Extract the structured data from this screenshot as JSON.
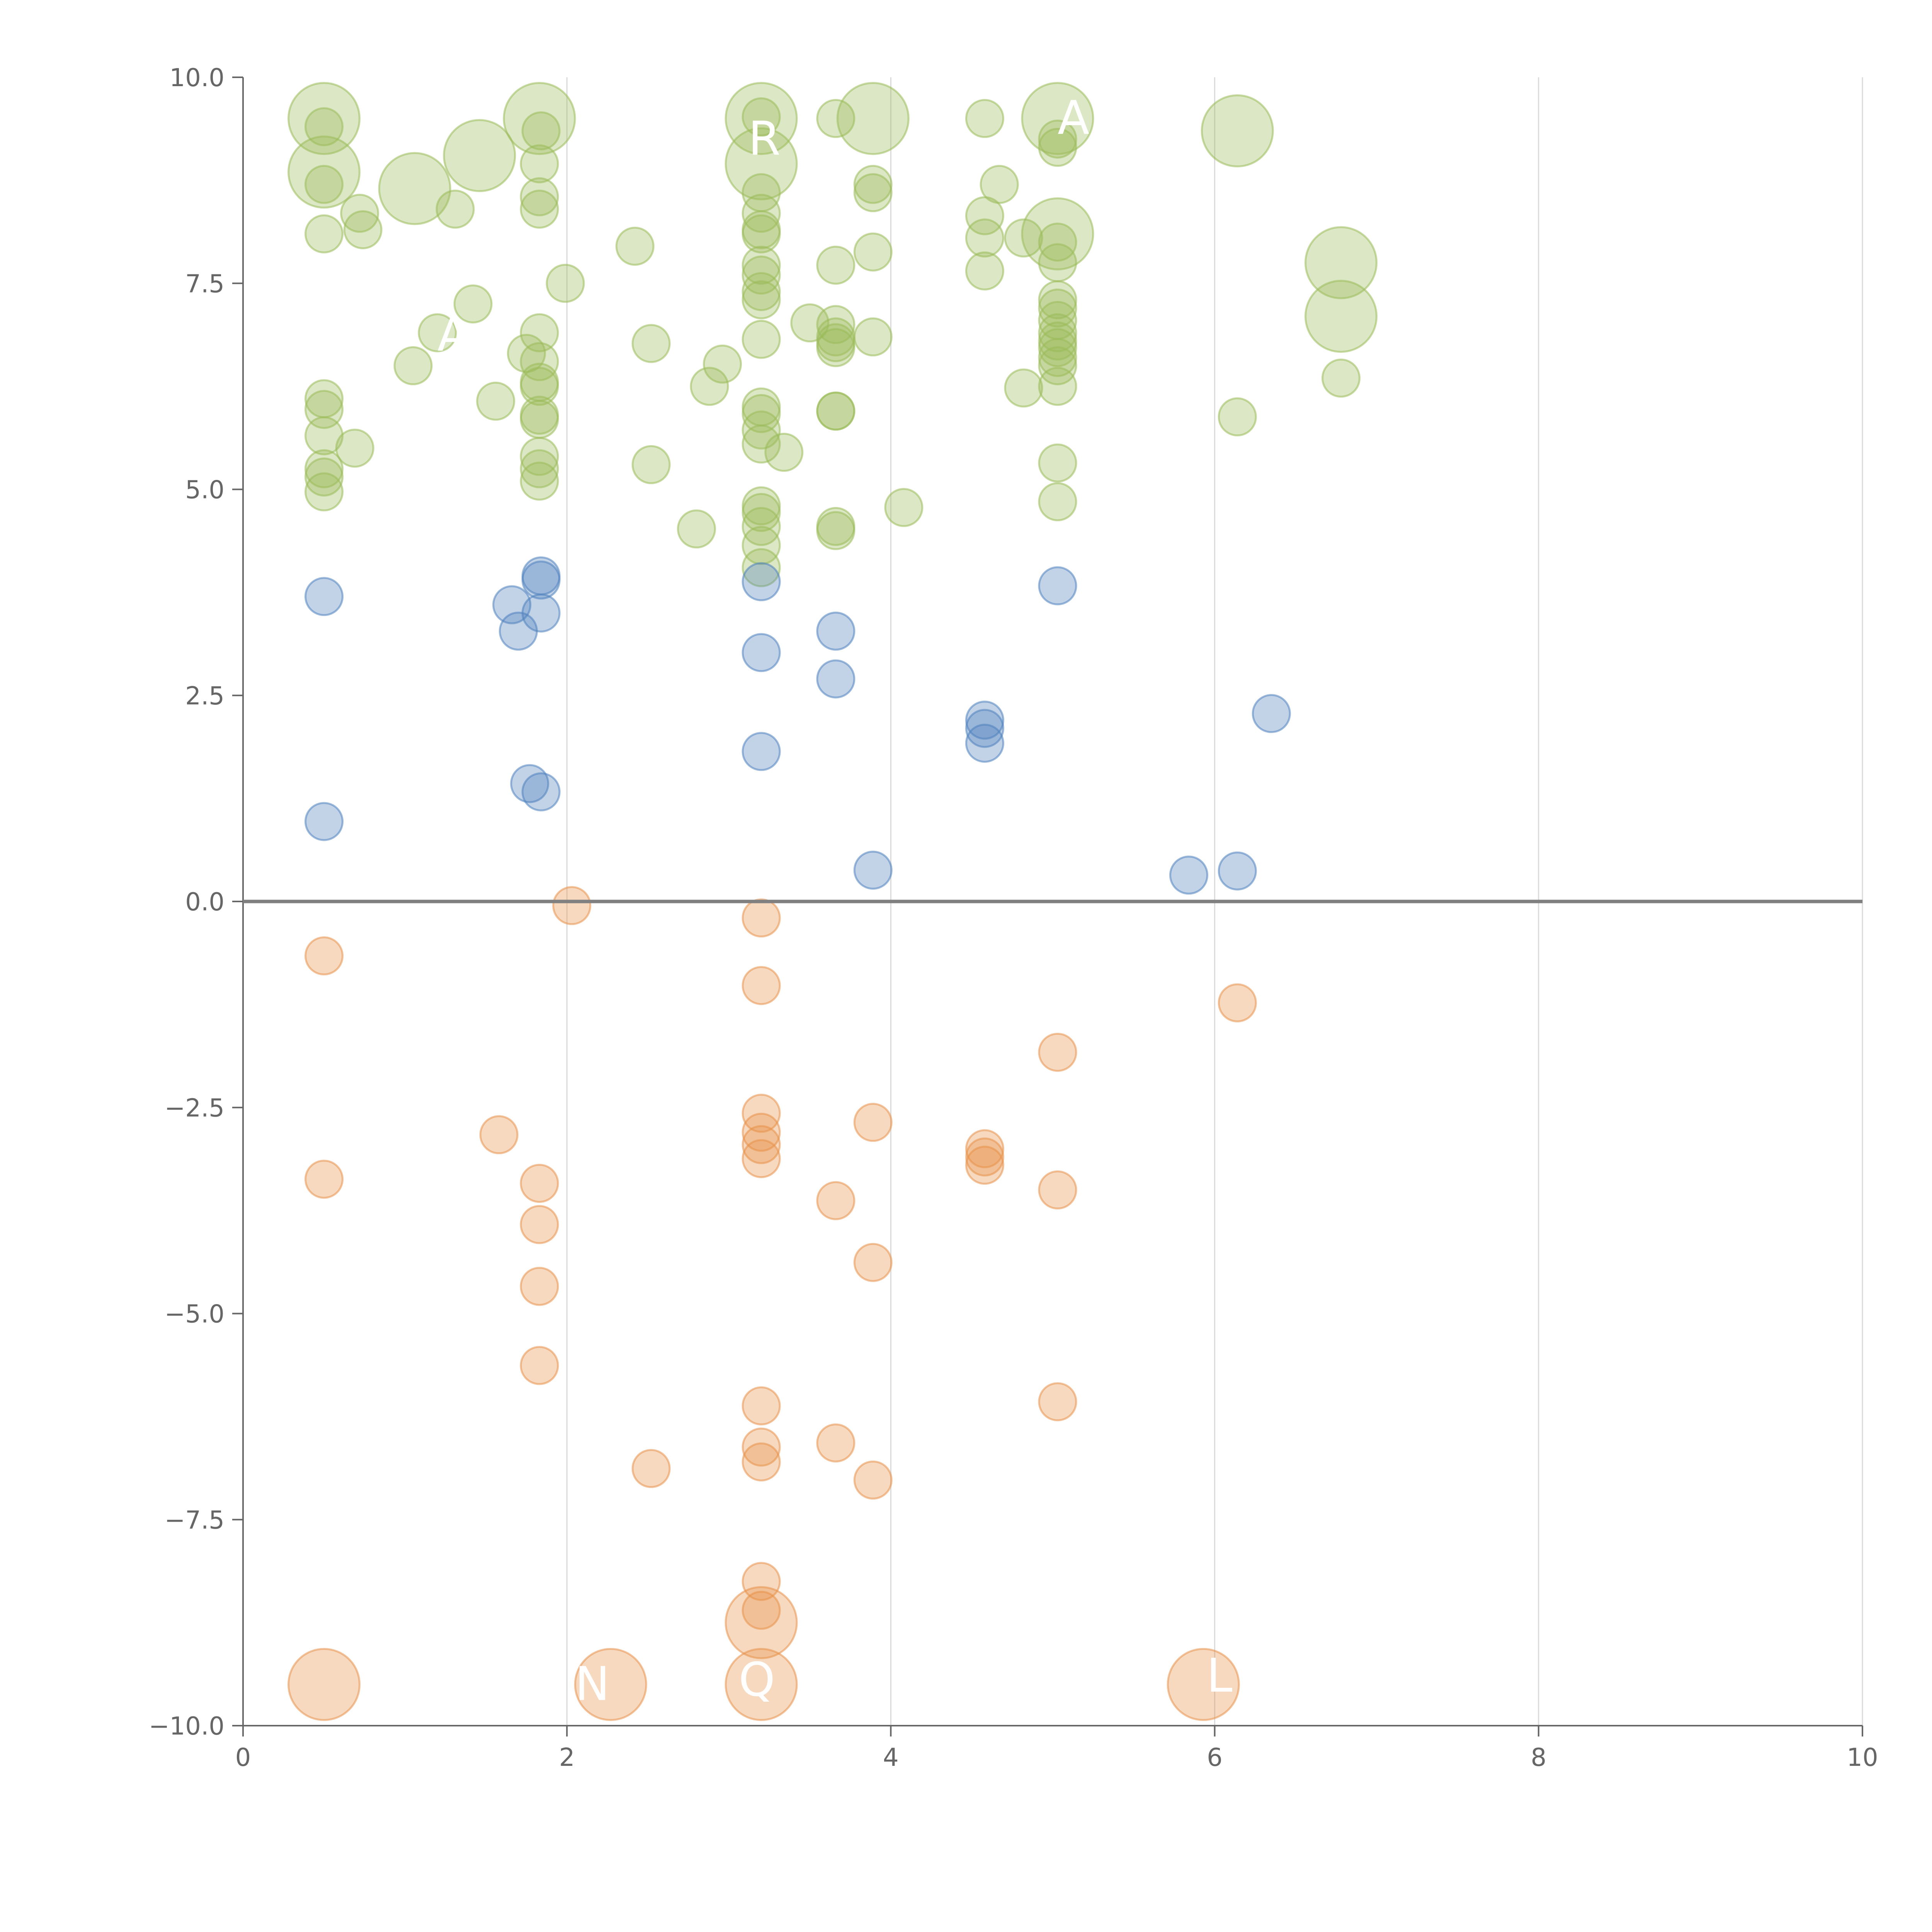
{
  "chart_data": {
    "type": "scatter",
    "subtype": "bubble",
    "title": "",
    "xlabel": "",
    "ylabel": "",
    "xlim": [
      0,
      10
    ],
    "ylim": [
      -10,
      10
    ],
    "x_ticks": [
      0,
      2,
      4,
      6,
      8,
      10
    ],
    "x_tick_labels": [
      "0",
      "2",
      "4",
      "6",
      "8",
      "10"
    ],
    "y_ticks": [
      -10,
      -7.5,
      -5,
      -2.5,
      0,
      2.5,
      5,
      7.5,
      10
    ],
    "y_tick_labels": [
      "−10.0",
      "−7.5",
      "−5.0",
      "−2.5",
      "0.0",
      "2.5",
      "5.0",
      "7.5",
      "10.0"
    ],
    "grid": "vertical lines at x ticks",
    "zero_line": 0,
    "colors": {
      "green": "#9bbb59",
      "blue": "#4f81bd",
      "orange": "#e8924a",
      "axis": "#666666",
      "zero_line": "#808080",
      "grid": "#d9d9d9",
      "label": "#ffffff"
    },
    "series": [
      {
        "color": "green",
        "points": [
          {
            "x": 0.5,
            "y": 9.5,
            "size": "large"
          },
          {
            "x": 0.5,
            "y": 8.85,
            "size": "large"
          },
          {
            "x": 0.5,
            "y": 9.4
          },
          {
            "x": 0.5,
            "y": 8.7
          },
          {
            "x": 0.5,
            "y": 8.1
          },
          {
            "x": 0.72,
            "y": 8.35
          },
          {
            "x": 0.74,
            "y": 8.15
          },
          {
            "x": 1.06,
            "y": 8.65,
            "size": "large"
          },
          {
            "x": 1.31,
            "y": 8.4
          },
          {
            "x": 1.46,
            "y": 9.05,
            "size": "large"
          },
          {
            "x": 1.83,
            "y": 9.5,
            "size": "large"
          },
          {
            "x": 1.84,
            "y": 9.35
          },
          {
            "x": 1.83,
            "y": 8.95
          },
          {
            "x": 1.83,
            "y": 8.55
          },
          {
            "x": 1.83,
            "y": 8.4
          },
          {
            "x": 2.42,
            "y": 7.95
          },
          {
            "x": 1.99,
            "y": 7.5
          },
          {
            "x": 1.42,
            "y": 7.25
          },
          {
            "x": 1.2,
            "y": 6.9
          },
          {
            "x": 1.05,
            "y": 6.5
          },
          {
            "x": 1.83,
            "y": 6.9
          },
          {
            "x": 1.75,
            "y": 6.65
          },
          {
            "x": 1.83,
            "y": 6.55
          },
          {
            "x": 1.83,
            "y": 6.3
          },
          {
            "x": 1.83,
            "y": 6.25
          },
          {
            "x": 1.83,
            "y": 5.9
          },
          {
            "x": 1.83,
            "y": 5.85
          },
          {
            "x": 1.83,
            "y": 5.4
          },
          {
            "x": 1.83,
            "y": 5.25
          },
          {
            "x": 1.83,
            "y": 5.1
          },
          {
            "x": 1.56,
            "y": 6.07
          },
          {
            "x": 0.5,
            "y": 6.1
          },
          {
            "x": 0.5,
            "y": 5.97
          },
          {
            "x": 0.5,
            "y": 5.65
          },
          {
            "x": 0.5,
            "y": 5.25
          },
          {
            "x": 0.5,
            "y": 5.15
          },
          {
            "x": 0.5,
            "y": 4.97
          },
          {
            "x": 0.69,
            "y": 5.5
          },
          {
            "x": 2.52,
            "y": 6.77
          },
          {
            "x": 2.52,
            "y": 5.3
          },
          {
            "x": 2.8,
            "y": 4.52
          },
          {
            "x": 2.96,
            "y": 6.52
          },
          {
            "x": 2.88,
            "y": 6.25
          },
          {
            "x": 3.2,
            "y": 9.5,
            "size": "large"
          },
          {
            "x": 3.2,
            "y": 9.52
          },
          {
            "x": 3.2,
            "y": 8.95,
            "size": "large"
          },
          {
            "x": 3.2,
            "y": 8.6
          },
          {
            "x": 3.2,
            "y": 8.35
          },
          {
            "x": 3.2,
            "y": 8.15
          },
          {
            "x": 3.2,
            "y": 8.1
          },
          {
            "x": 3.2,
            "y": 7.72
          },
          {
            "x": 3.2,
            "y": 7.6
          },
          {
            "x": 3.2,
            "y": 7.4
          },
          {
            "x": 3.2,
            "y": 7.3
          },
          {
            "x": 3.2,
            "y": 6.82
          },
          {
            "x": 3.2,
            "y": 6.0
          },
          {
            "x": 3.2,
            "y": 5.92
          },
          {
            "x": 3.2,
            "y": 5.72
          },
          {
            "x": 3.2,
            "y": 5.55
          },
          {
            "x": 3.2,
            "y": 4.8
          },
          {
            "x": 3.2,
            "y": 4.72
          },
          {
            "x": 3.2,
            "y": 4.55
          },
          {
            "x": 3.2,
            "y": 4.32
          },
          {
            "x": 3.2,
            "y": 4.05
          },
          {
            "x": 3.34,
            "y": 5.45
          },
          {
            "x": 3.5,
            "y": 7.02
          },
          {
            "x": 3.66,
            "y": 9.5
          },
          {
            "x": 3.66,
            "y": 7.72
          },
          {
            "x": 3.66,
            "y": 7.0
          },
          {
            "x": 3.66,
            "y": 6.85
          },
          {
            "x": 3.66,
            "y": 6.78
          },
          {
            "x": 3.66,
            "y": 6.72
          },
          {
            "x": 3.66,
            "y": 5.95
          },
          {
            "x": 3.66,
            "y": 5.95
          },
          {
            "x": 3.66,
            "y": 4.55
          },
          {
            "x": 3.66,
            "y": 4.5
          },
          {
            "x": 3.89,
            "y": 9.5,
            "size": "large"
          },
          {
            "x": 3.89,
            "y": 8.7
          },
          {
            "x": 3.89,
            "y": 8.6
          },
          {
            "x": 3.89,
            "y": 7.88
          },
          {
            "x": 3.89,
            "y": 6.85
          },
          {
            "x": 4.08,
            "y": 4.78
          },
          {
            "x": 4.58,
            "y": 9.5
          },
          {
            "x": 4.58,
            "y": 8.32
          },
          {
            "x": 4.58,
            "y": 8.05
          },
          {
            "x": 4.58,
            "y": 7.65
          },
          {
            "x": 4.67,
            "y": 8.7
          },
          {
            "x": 4.82,
            "y": 8.05
          },
          {
            "x": 4.82,
            "y": 6.23
          },
          {
            "x": 5.03,
            "y": 9.5,
            "size": "large"
          },
          {
            "x": 5.03,
            "y": 9.25
          },
          {
            "x": 5.03,
            "y": 9.15
          },
          {
            "x": 5.03,
            "y": 8.1,
            "size": "large"
          },
          {
            "x": 5.03,
            "y": 8.0
          },
          {
            "x": 5.03,
            "y": 7.75
          },
          {
            "x": 5.03,
            "y": 7.3
          },
          {
            "x": 5.03,
            "y": 7.2
          },
          {
            "x": 5.03,
            "y": 7.05
          },
          {
            "x": 5.03,
            "y": 6.9
          },
          {
            "x": 5.03,
            "y": 6.8
          },
          {
            "x": 5.03,
            "y": 6.72
          },
          {
            "x": 5.03,
            "y": 6.6
          },
          {
            "x": 5.03,
            "y": 6.5
          },
          {
            "x": 5.03,
            "y": 6.25
          },
          {
            "x": 5.03,
            "y": 5.32
          },
          {
            "x": 5.03,
            "y": 4.85
          },
          {
            "x": 6.14,
            "y": 9.35,
            "size": "large"
          },
          {
            "x": 6.14,
            "y": 5.88
          },
          {
            "x": 6.78,
            "y": 7.75,
            "size": "large"
          },
          {
            "x": 6.78,
            "y": 7.1,
            "size": "large"
          },
          {
            "x": 6.78,
            "y": 6.35
          }
        ]
      },
      {
        "color": "blue",
        "points": [
          {
            "x": 0.5,
            "y": 3.7
          },
          {
            "x": 0.5,
            "y": 0.97
          },
          {
            "x": 1.66,
            "y": 3.6
          },
          {
            "x": 1.7,
            "y": 3.28
          },
          {
            "x": 1.84,
            "y": 3.95
          },
          {
            "x": 1.84,
            "y": 3.9
          },
          {
            "x": 1.84,
            "y": 3.5
          },
          {
            "x": 1.77,
            "y": 1.43
          },
          {
            "x": 1.84,
            "y": 1.33
          },
          {
            "x": 3.2,
            "y": 3.88
          },
          {
            "x": 3.2,
            "y": 3.02
          },
          {
            "x": 3.2,
            "y": 1.82
          },
          {
            "x": 3.66,
            "y": 3.28
          },
          {
            "x": 3.66,
            "y": 2.7
          },
          {
            "x": 3.89,
            "y": 0.38
          },
          {
            "x": 4.58,
            "y": 2.2
          },
          {
            "x": 4.58,
            "y": 2.1
          },
          {
            "x": 4.58,
            "y": 1.92
          },
          {
            "x": 5.03,
            "y": 3.83
          },
          {
            "x": 5.84,
            "y": 0.32
          },
          {
            "x": 6.14,
            "y": 0.37
          },
          {
            "x": 6.35,
            "y": 2.28
          }
        ]
      },
      {
        "color": "orange",
        "points": [
          {
            "x": 0.5,
            "y": -0.66
          },
          {
            "x": 0.5,
            "y": -3.37
          },
          {
            "x": 0.5,
            "y": -9.5,
            "size": "large"
          },
          {
            "x": 1.58,
            "y": -2.83
          },
          {
            "x": 1.83,
            "y": -3.42
          },
          {
            "x": 1.83,
            "y": -3.92
          },
          {
            "x": 1.83,
            "y": -4.67
          },
          {
            "x": 1.83,
            "y": -5.63
          },
          {
            "x": 2.03,
            "y": -0.05
          },
          {
            "x": 2.27,
            "y": -9.5,
            "size": "large"
          },
          {
            "x": 2.52,
            "y": -6.88
          },
          {
            "x": 3.2,
            "y": -0.2
          },
          {
            "x": 3.2,
            "y": -1.02
          },
          {
            "x": 3.2,
            "y": -2.57
          },
          {
            "x": 3.2,
            "y": -2.8
          },
          {
            "x": 3.2,
            "y": -2.95
          },
          {
            "x": 3.2,
            "y": -3.12
          },
          {
            "x": 3.2,
            "y": -6.12
          },
          {
            "x": 3.2,
            "y": -6.62
          },
          {
            "x": 3.2,
            "y": -6.8
          },
          {
            "x": 3.2,
            "y": -8.25
          },
          {
            "x": 3.2,
            "y": -8.6
          },
          {
            "x": 3.2,
            "y": -8.75,
            "size": "large"
          },
          {
            "x": 3.2,
            "y": -9.5,
            "size": "large"
          },
          {
            "x": 3.66,
            "y": -3.63
          },
          {
            "x": 3.66,
            "y": -6.57
          },
          {
            "x": 3.89,
            "y": -2.68
          },
          {
            "x": 3.89,
            "y": -4.38
          },
          {
            "x": 3.89,
            "y": -7.02
          },
          {
            "x": 4.58,
            "y": -3.0
          },
          {
            "x": 4.58,
            "y": -3.1
          },
          {
            "x": 4.58,
            "y": -3.2
          },
          {
            "x": 5.03,
            "y": -1.83
          },
          {
            "x": 5.03,
            "y": -3.5
          },
          {
            "x": 5.03,
            "y": -6.07
          },
          {
            "x": 5.93,
            "y": -9.5,
            "size": "large"
          },
          {
            "x": 6.14,
            "y": -1.23
          }
        ]
      }
    ],
    "annotations": [
      {
        "text": "A",
        "x": 5.03,
        "y": 9.5
      },
      {
        "text": "R",
        "x": 3.12,
        "y": 9.25
      },
      {
        "text": "A",
        "x": 1.2,
        "y": 6.87
      },
      {
        "text": "N",
        "x": 2.05,
        "y": -9.5
      },
      {
        "text": "Q",
        "x": 3.06,
        "y": -9.45
      },
      {
        "text": "L",
        "x": 5.95,
        "y": -9.4
      }
    ]
  }
}
